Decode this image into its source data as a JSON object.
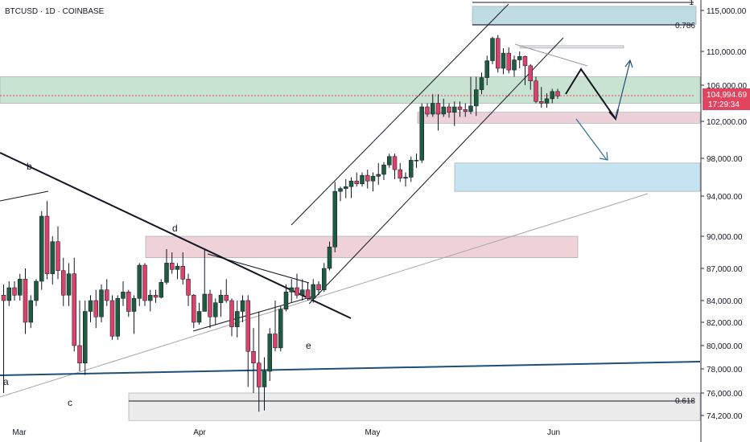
{
  "chart_data": {
    "type": "candlestick",
    "symbol_title": "BTCUSD · 1D · COINBASE",
    "price_badge": {
      "price": "104,994.69",
      "countdown": "17:29:34",
      "value": 104994.69
    },
    "y_ticks": [
      "115,000.00",
      "110,000.00",
      "106,000.00",
      "102,000.00",
      "98,000.00",
      "94,000.00",
      "90,000.00",
      "87,000.00",
      "84,000.00",
      "82,000.00",
      "80,000.00",
      "78,000.00",
      "76,000.00",
      "74,200.00"
    ],
    "x_ticks": [
      "Mar",
      "Apr",
      "May",
      "Jun"
    ],
    "fib_labels": [
      "1",
      "0.786",
      "0.618"
    ],
    "wave_labels": [
      "a",
      "b",
      "c",
      "d",
      "e"
    ],
    "zones": [
      {
        "low": 104000,
        "high": 107000,
        "color": "#b7d9c4"
      },
      {
        "low": 101800,
        "high": 103000,
        "color": "#e6c1cb"
      },
      {
        "low": 110400,
        "high": 110700,
        "color": "#d7d9de"
      },
      {
        "low": 94500,
        "high": 97500,
        "color": "#b3d9ee"
      },
      {
        "low": 88000,
        "high": 90000,
        "color": "#e8c3c9"
      },
      {
        "low": 73800,
        "high": 76000,
        "color": "#e5e5e5"
      },
      {
        "low": 113300,
        "high": 115500,
        "color": "#a8d0d8"
      }
    ],
    "candles": [
      [
        84500,
        85500,
        76000,
        84000
      ],
      [
        84000,
        85800,
        83500,
        85200
      ],
      [
        85200,
        85800,
        84000,
        84500
      ],
      [
        84500,
        86500,
        84000,
        86000
      ],
      [
        86000,
        87000,
        81000,
        82000
      ],
      [
        82000,
        84500,
        81500,
        84000
      ],
      [
        84000,
        86000,
        83500,
        85800
      ],
      [
        85800,
        92500,
        85000,
        92000
      ],
      [
        92000,
        93500,
        86000,
        86500
      ],
      [
        86500,
        90000,
        85500,
        89500
      ],
      [
        89500,
        91000,
        86000,
        86800
      ],
      [
        86800,
        88000,
        83500,
        84500
      ],
      [
        84500,
        87500,
        83500,
        86500
      ],
      [
        86500,
        88000,
        79500,
        80000
      ],
      [
        80000,
        84000,
        77800,
        78500
      ],
      [
        78500,
        84000,
        77500,
        83000
      ],
      [
        83000,
        84500,
        82000,
        84000
      ],
      [
        84000,
        85000,
        81500,
        82500
      ],
      [
        82500,
        85500,
        82000,
        85000
      ],
      [
        85000,
        86000,
        83500,
        84000
      ],
      [
        84000,
        84500,
        80500,
        80800
      ],
      [
        80800,
        84500,
        80500,
        84200
      ],
      [
        84200,
        85800,
        83500,
        84800
      ],
      [
        84800,
        85000,
        82500,
        83000
      ],
      [
        83000,
        84500,
        81000,
        84200
      ],
      [
        84200,
        87500,
        83500,
        87300
      ],
      [
        87300,
        87500,
        83500,
        84000
      ],
      [
        84000,
        85000,
        83000,
        84500
      ],
      [
        84500,
        85000,
        83800,
        84300
      ],
      [
        84300,
        86000,
        84200,
        85700
      ],
      [
        85700,
        88800,
        85500,
        87500
      ],
      [
        87500,
        88500,
        86500,
        86900
      ],
      [
        86900,
        87500,
        86000,
        87200
      ],
      [
        87200,
        88500,
        85500,
        86000
      ],
      [
        86000,
        86500,
        83500,
        84500
      ],
      [
        84500,
        84600,
        81500,
        82000
      ],
      [
        82000,
        83800,
        81800,
        83000
      ],
      [
        83000,
        88800,
        83000,
        84600
      ],
      [
        84600,
        85000,
        81500,
        82500
      ],
      [
        82500,
        84200,
        81800,
        83800
      ],
      [
        83800,
        85000,
        82500,
        84500
      ],
      [
        84500,
        86000,
        83800,
        84000
      ],
      [
        84000,
        84200,
        80800,
        81600
      ],
      [
        81600,
        84000,
        80700,
        83000
      ],
      [
        83000,
        84500,
        82000,
        84000
      ],
      [
        84000,
        84500,
        76500,
        79500
      ],
      [
        79500,
        81500,
        76000,
        78500
      ],
      [
        78500,
        83000,
        74500,
        76500
      ],
      [
        76500,
        79000,
        74600,
        77800
      ],
      [
        77800,
        81500,
        77000,
        81000
      ],
      [
        81000,
        84000,
        79500,
        79800
      ],
      [
        79800,
        83500,
        79500,
        83200
      ],
      [
        83200,
        85500,
        83000,
        84800
      ],
      [
        84800,
        86000,
        83800,
        85200
      ],
      [
        85200,
        86500,
        84200,
        84500
      ],
      [
        84500,
        86000,
        84000,
        85000
      ],
      [
        85000,
        85700,
        84000,
        84200
      ],
      [
        84200,
        86000,
        83800,
        85500
      ],
      [
        85500,
        85800,
        84500,
        85000
      ],
      [
        85000,
        87500,
        84800,
        87000
      ],
      [
        87000,
        89500,
        86800,
        89000
      ],
      [
        89000,
        95500,
        88500,
        94500
      ],
      [
        94500,
        95000,
        93500,
        94800
      ],
      [
        94800,
        95800,
        93800,
        95000
      ],
      [
        95000,
        96000,
        93800,
        95600
      ],
      [
        95600,
        96500,
        95000,
        95300
      ],
      [
        95300,
        96500,
        95000,
        96200
      ],
      [
        96200,
        96800,
        94800,
        95600
      ],
      [
        95600,
        96500,
        94500,
        96100
      ],
      [
        96100,
        97500,
        95200,
        96300
      ],
      [
        96300,
        97600,
        95700,
        97300
      ],
      [
        97300,
        98500,
        97000,
        98200
      ],
      [
        98200,
        98500,
        95800,
        96800
      ],
      [
        96800,
        97500,
        95500,
        95900
      ],
      [
        95900,
        96500,
        95000,
        96000
      ],
      [
        96000,
        98200,
        95500,
        97800
      ],
      [
        97800,
        98500,
        97000,
        97800
      ],
      [
        97800,
        104000,
        97500,
        103600
      ],
      [
        103600,
        104000,
        102500,
        102800
      ],
      [
        102800,
        105000,
        102500,
        104000
      ],
      [
        104000,
        105000,
        101000,
        102800
      ],
      [
        102800,
        104500,
        102500,
        103600
      ],
      [
        103600,
        104000,
        102400,
        103000
      ],
      [
        103000,
        104200,
        101500,
        103600
      ],
      [
        103600,
        104200,
        102500,
        103300
      ],
      [
        103300,
        104000,
        102500,
        103100
      ],
      [
        103100,
        107000,
        102800,
        103700
      ],
      [
        103700,
        107000,
        102600,
        105500
      ],
      [
        105500,
        107500,
        105000,
        106900
      ],
      [
        106900,
        109500,
        106000,
        108900
      ],
      [
        108900,
        111800,
        108500,
        111600
      ],
      [
        111600,
        112000,
        107500,
        108000
      ],
      [
        108000,
        110400,
        107300,
        109800
      ],
      [
        109800,
        110500,
        107400,
        107800
      ],
      [
        107800,
        109500,
        107000,
        109000
      ],
      [
        109000,
        110000,
        108000,
        109400
      ],
      [
        109400,
        109500,
        106000,
        108300
      ],
      [
        108300,
        108500,
        105500,
        106500
      ],
      [
        106500,
        107000,
        104000,
        104200
      ],
      [
        104200,
        105800,
        103500,
        104000
      ],
      [
        104000,
        105100,
        103500,
        104500
      ],
      [
        104500,
        105600,
        104000,
        105300
      ],
      [
        105300,
        105600,
        104500,
        104800
      ]
    ]
  }
}
